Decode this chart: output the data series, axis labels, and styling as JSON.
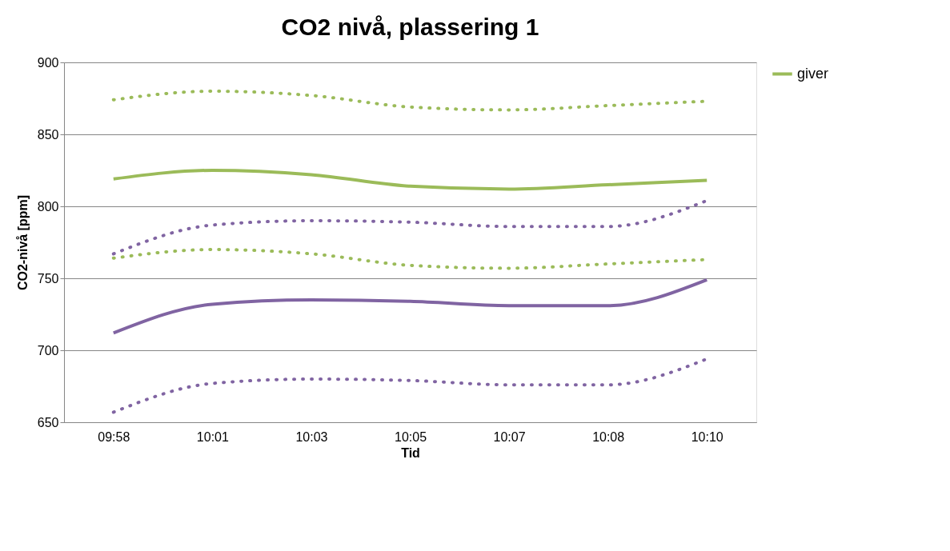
{
  "chart_data": {
    "type": "line",
    "title": "CO2 nivå, plassering 1",
    "xlabel": "Tid",
    "ylabel": "CO2-nivå [ppm]",
    "categories": [
      "09:58",
      "10:01",
      "10:03",
      "10:05",
      "10:07",
      "10:08",
      "10:10"
    ],
    "series": [
      {
        "color": "#9bbb59",
        "line_style": "dotted",
        "values": [
          874,
          880,
          877,
          869,
          867,
          870,
          873
        ]
      },
      {
        "name": "giver",
        "color": "#9bbb59",
        "line_style": "solid",
        "values": [
          819,
          825,
          822,
          814,
          812,
          815,
          818
        ]
      },
      {
        "color": "#9bbb59",
        "line_style": "dotted",
        "values": [
          764,
          770,
          767,
          759,
          757,
          760,
          763
        ]
      },
      {
        "color": "#8064a2",
        "line_style": "dotted",
        "values": [
          767,
          787,
          790,
          789,
          786,
          786,
          804
        ]
      },
      {
        "color": "#8064a2",
        "line_style": "solid",
        "values": [
          712,
          732,
          735,
          734,
          731,
          731,
          749
        ]
      },
      {
        "color": "#8064a2",
        "line_style": "dotted",
        "values": [
          657,
          677,
          680,
          679,
          676,
          676,
          694
        ]
      }
    ],
    "ylim": [
      650,
      900
    ],
    "yticks": [
      650,
      700,
      750,
      800,
      850,
      900
    ],
    "grid": "y",
    "legend": "right",
    "marker": "none"
  }
}
